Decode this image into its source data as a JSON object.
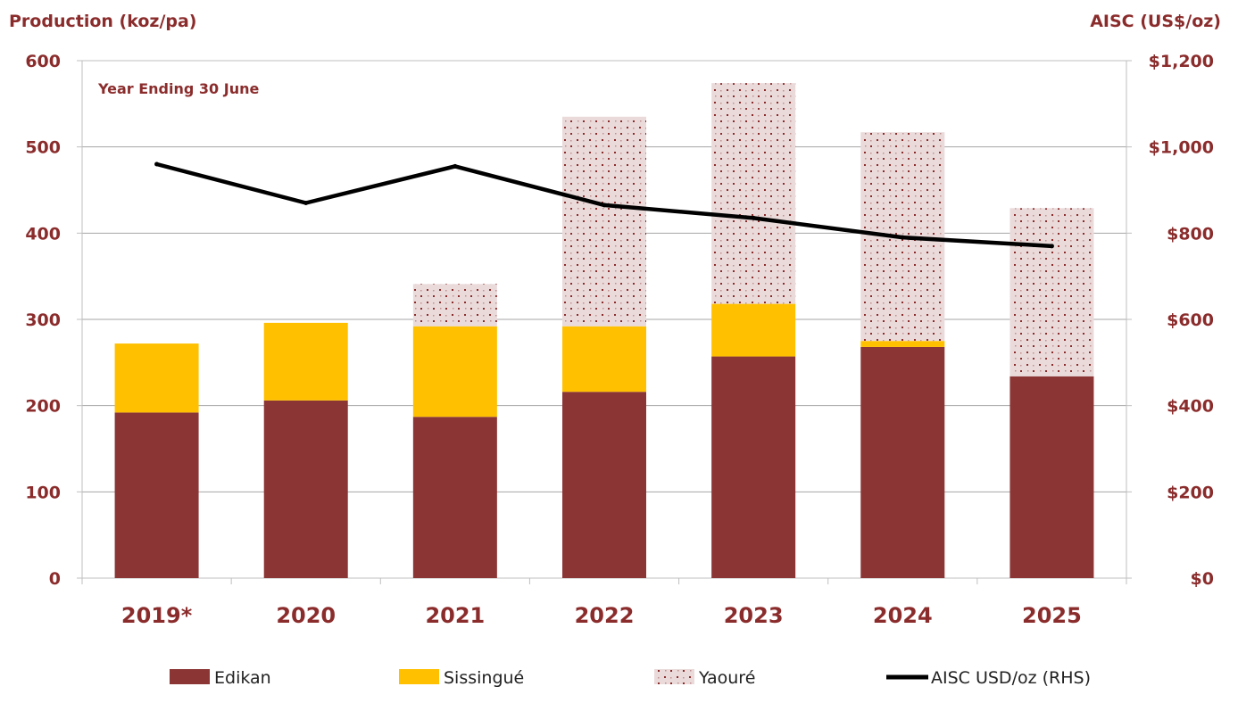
{
  "chart_data": {
    "type": "bar",
    "stacked": true,
    "title": "",
    "annotation": "Year Ending 30 June",
    "ylabel_left": "Production (koz/pa)",
    "ylabel_right": "AISC (US$/oz)",
    "xlabel": "",
    "categories": [
      "2019*",
      "2020",
      "2021",
      "2022",
      "2023",
      "2024",
      "2025"
    ],
    "ylim_left": [
      0,
      600
    ],
    "ylim_right": [
      0,
      1200
    ],
    "left_ticks": [
      "0",
      "100",
      "200",
      "300",
      "400",
      "500",
      "600"
    ],
    "right_ticks": [
      "$0",
      "$200",
      "$400",
      "$600",
      "$800",
      "$1,000",
      "$1,200"
    ],
    "grid": true,
    "legend_position": "bottom",
    "series": [
      {
        "name": "Edikan",
        "kind": "bar",
        "color": "#8b3535",
        "values": [
          192,
          206,
          187,
          216,
          257,
          268,
          234
        ]
      },
      {
        "name": "Sissingué",
        "kind": "bar",
        "color": "#ffc000",
        "values": [
          80,
          90,
          105,
          76,
          61,
          7,
          0
        ]
      },
      {
        "name": "Yaouré",
        "kind": "bar",
        "pattern": "dotted",
        "color": "#e8d8d8",
        "dot_color": "#8b2c2c",
        "values": [
          0,
          0,
          49,
          243,
          256,
          242,
          195
        ]
      },
      {
        "name": "AISC USD/oz (RHS)",
        "kind": "line",
        "axis": "right",
        "color": "#000000",
        "values": [
          960,
          870,
          955,
          865,
          835,
          790,
          770
        ]
      }
    ]
  }
}
